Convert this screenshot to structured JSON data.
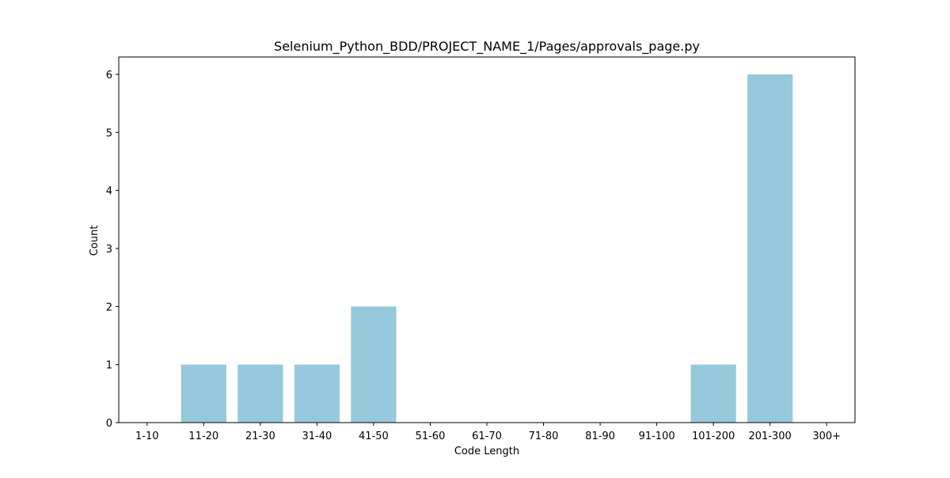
{
  "chart_data": {
    "type": "bar",
    "title": "Selenium_Python_BDD/PROJECT_NAME_1/Pages/approvals_page.py",
    "xlabel": "Code Length",
    "ylabel": "Count",
    "categories": [
      "1-10",
      "11-20",
      "21-30",
      "31-40",
      "41-50",
      "51-60",
      "61-70",
      "71-80",
      "81-90",
      "91-100",
      "101-200",
      "201-300",
      "300+"
    ],
    "values": [
      0,
      1,
      1,
      1,
      2,
      0,
      0,
      0,
      0,
      0,
      1,
      6,
      0
    ],
    "ylim": [
      0,
      6.3
    ],
    "yticks": [
      0,
      1,
      2,
      3,
      4,
      5,
      6
    ],
    "grid": false,
    "bar_color": "#96c9dc",
    "axis_color": "#000000"
  }
}
